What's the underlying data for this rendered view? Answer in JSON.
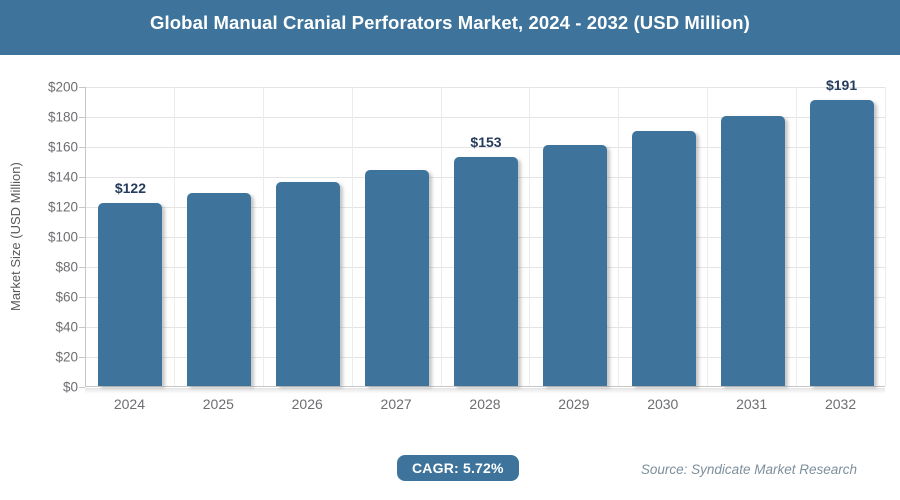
{
  "header": {
    "title": "Global Manual Cranial Perforators Market, 2024 - 2032 (USD Million)"
  },
  "chart_data": {
    "type": "bar",
    "title": "Global Manual Cranial Perforators Market, 2024 - 2032 (USD Million)",
    "categories": [
      "2024",
      "2025",
      "2026",
      "2027",
      "2028",
      "2029",
      "2030",
      "2031",
      "2032"
    ],
    "values": [
      122,
      129,
      136,
      144,
      153,
      161,
      170,
      180,
      191
    ],
    "data_labels": [
      "$122",
      "",
      "",
      "",
      "$153",
      "",
      "",
      "",
      "$191"
    ],
    "xlabel": "",
    "ylabel": "Market Size (USD Million)",
    "ylim": [
      0,
      200
    ],
    "ytick_step": 20,
    "ytick_labels": [
      "$0",
      "$20",
      "$40",
      "$60",
      "$80",
      "$100",
      "$120",
      "$140",
      "$160",
      "$180",
      "$200"
    ],
    "grid": true,
    "legend": "none",
    "bar_color": "#3e749b"
  },
  "footer": {
    "cagr_label": "CAGR: 5.72%",
    "source": "Source: Syndicate Market Research"
  },
  "colors": {
    "accent_blue": "#3e749b",
    "data_label_navy": "#253c5c",
    "tick_gray": "#6d6e71",
    "axis_line": "#c6c7c9",
    "gridline": "#e4e4e4",
    "source_gray": "#7d8f9b"
  }
}
